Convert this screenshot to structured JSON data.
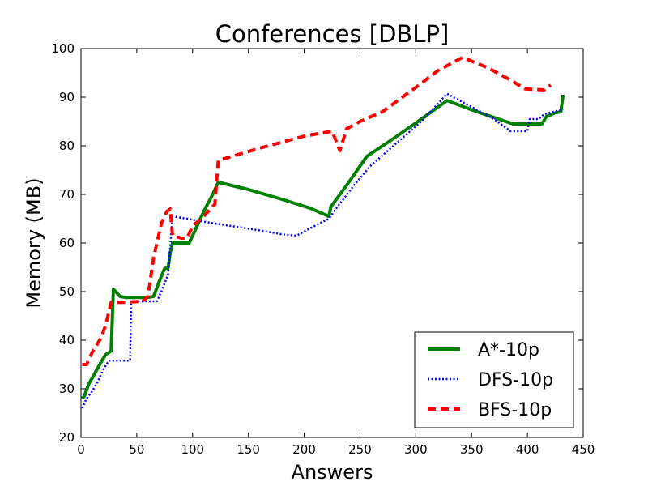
{
  "chart_data": {
    "type": "line",
    "title": "Conferences [DBLP]",
    "xlabel": "Answers",
    "ylabel": "Memory (MB)",
    "xlim": [
      0,
      450
    ],
    "ylim": [
      20,
      100
    ],
    "xticks": [
      0,
      50,
      100,
      150,
      200,
      250,
      300,
      350,
      400,
      450
    ],
    "yticks": [
      20,
      30,
      40,
      50,
      60,
      70,
      80,
      90,
      100
    ],
    "grid": false,
    "legend_position": "lower-right",
    "series": [
      {
        "name": "A*-10p",
        "color": "#008000",
        "style": "solid",
        "points": [
          [
            1,
            28
          ],
          [
            3,
            28.5
          ],
          [
            7,
            31
          ],
          [
            12,
            33
          ],
          [
            18,
            35.5
          ],
          [
            22,
            37
          ],
          [
            27,
            37.8
          ],
          [
            29,
            50.5
          ],
          [
            35,
            49
          ],
          [
            40,
            48.8
          ],
          [
            50,
            48.8
          ],
          [
            60,
            48.8
          ],
          [
            65,
            49
          ],
          [
            70,
            52
          ],
          [
            75,
            54.8
          ],
          [
            78,
            54.8
          ],
          [
            80,
            58
          ],
          [
            82,
            60
          ],
          [
            90,
            60
          ],
          [
            97,
            60
          ],
          [
            103,
            63
          ],
          [
            110,
            66.5
          ],
          [
            118,
            70
          ],
          [
            123,
            72.5
          ],
          [
            150,
            71
          ],
          [
            180,
            69
          ],
          [
            205,
            67.2
          ],
          [
            222,
            65.5
          ],
          [
            224,
            67.5
          ],
          [
            240,
            72.5
          ],
          [
            256,
            77.8
          ],
          [
            280,
            81.5
          ],
          [
            305,
            85.5
          ],
          [
            328,
            89.3
          ],
          [
            355,
            87
          ],
          [
            387,
            84.5
          ],
          [
            400,
            84.5
          ],
          [
            413,
            84.5
          ],
          [
            417,
            86
          ],
          [
            425,
            86.8
          ],
          [
            430,
            87
          ],
          [
            432,
            90.5
          ]
        ]
      },
      {
        "name": "DFS-10p",
        "color": "#0000ff",
        "style": "dotted",
        "points": [
          [
            1,
            26
          ],
          [
            5,
            28
          ],
          [
            10,
            29.5
          ],
          [
            15,
            31.5
          ],
          [
            20,
            34
          ],
          [
            25,
            35.8
          ],
          [
            30,
            35.8
          ],
          [
            44,
            35.8
          ],
          [
            45,
            48
          ],
          [
            55,
            48
          ],
          [
            68,
            48
          ],
          [
            72,
            50
          ],
          [
            78,
            53.5
          ],
          [
            82,
            65.5
          ],
          [
            100,
            64.8
          ],
          [
            120,
            64
          ],
          [
            140,
            63.3
          ],
          [
            160,
            62.6
          ],
          [
            180,
            61.8
          ],
          [
            193,
            61.5
          ],
          [
            205,
            63
          ],
          [
            222,
            65
          ],
          [
            230,
            67.5
          ],
          [
            245,
            72
          ],
          [
            260,
            76
          ],
          [
            280,
            80
          ],
          [
            305,
            85
          ],
          [
            328,
            90.7
          ],
          [
            350,
            88
          ],
          [
            370,
            85.5
          ],
          [
            385,
            83
          ],
          [
            400,
            83
          ],
          [
            402,
            85.5
          ],
          [
            410,
            85.5
          ],
          [
            415,
            86.5
          ],
          [
            432,
            87.5
          ]
        ]
      },
      {
        "name": "BFS-10p",
        "color": "#ff0000",
        "style": "dashed",
        "points": [
          [
            1,
            35
          ],
          [
            5,
            35
          ],
          [
            10,
            37.5
          ],
          [
            18,
            40.5
          ],
          [
            22,
            43
          ],
          [
            27,
            47.8
          ],
          [
            40,
            47.8
          ],
          [
            55,
            48
          ],
          [
            60,
            49
          ],
          [
            65,
            57
          ],
          [
            72,
            64
          ],
          [
            77,
            66.5
          ],
          [
            80,
            67
          ],
          [
            82,
            61.5
          ],
          [
            90,
            61
          ],
          [
            95,
            61
          ],
          [
            100,
            63.5
          ],
          [
            110,
            65.5
          ],
          [
            120,
            68
          ],
          [
            123,
            77
          ],
          [
            160,
            79.5
          ],
          [
            200,
            82
          ],
          [
            225,
            83
          ],
          [
            232,
            79
          ],
          [
            238,
            83.5
          ],
          [
            250,
            85
          ],
          [
            270,
            87
          ],
          [
            300,
            92
          ],
          [
            320,
            95.5
          ],
          [
            342,
            98.2
          ],
          [
            365,
            96
          ],
          [
            385,
            93.5
          ],
          [
            398,
            91.7
          ],
          [
            415,
            91.5
          ],
          [
            421,
            92.5
          ]
        ]
      }
    ]
  }
}
